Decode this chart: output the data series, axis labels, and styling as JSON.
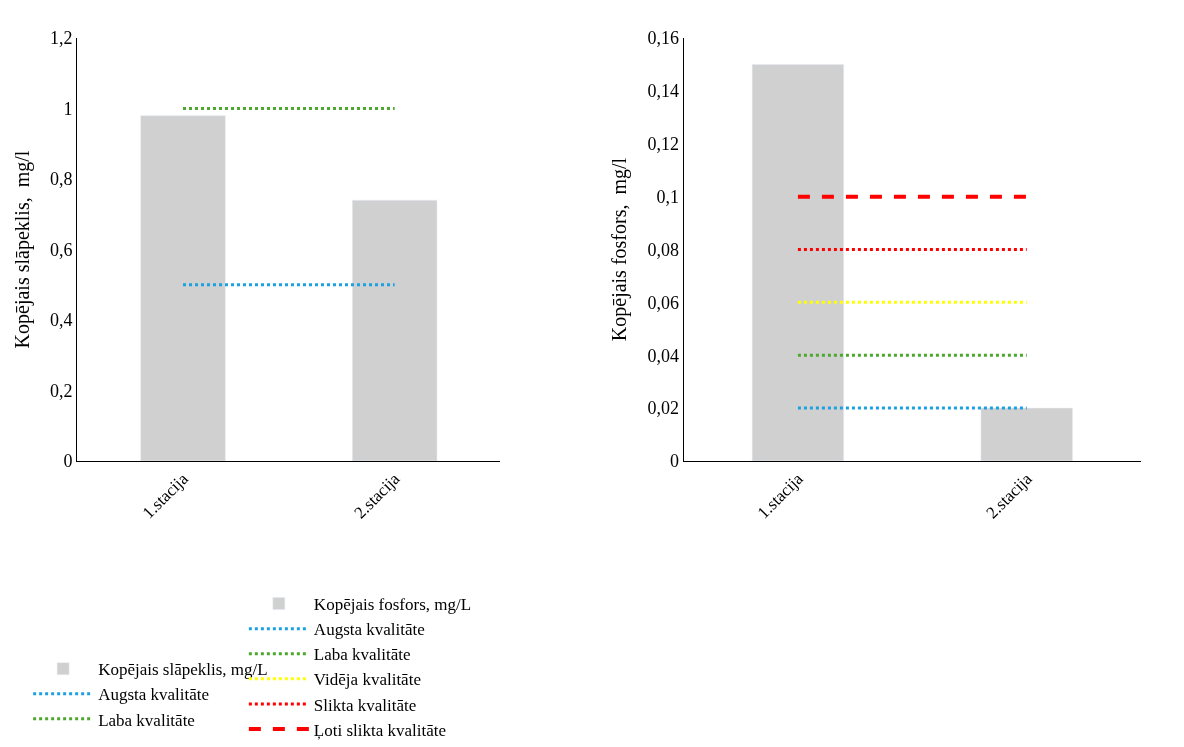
{
  "chart_data": [
    {
      "type": "bar",
      "ylabel": "Kopējais slāpeklis,  mg/l",
      "categories": [
        "1.stacija",
        "2.stacija"
      ],
      "series": [
        {
          "name": "Kopējais slāpeklis, mg/L",
          "color": "#d0d0d0",
          "values": [
            0.98,
            0.74
          ]
        },
        {
          "type": "line",
          "name": "Augsta kvalitāte",
          "color": "#1ba1e2",
          "line_style": "dotted",
          "values": [
            0.5,
            0.5
          ]
        },
        {
          "type": "line",
          "name": "Laba kvalitāte",
          "color": "#4ea72e",
          "line_style": "dotted",
          "values": [
            1,
            1
          ]
        }
      ],
      "ylim": [
        0,
        1.2
      ],
      "yticks": [
        0,
        {
          "value": 0.2,
          "label": "0,2"
        },
        {
          "value": 0.4,
          "label": "0,4"
        },
        {
          "value": 0.6,
          "label": "0,6"
        },
        {
          "value": 0.8,
          "label": "0,8"
        },
        1,
        {
          "value": 1.2,
          "label": "1,2"
        }
      ],
      "legend": "bottom"
    },
    {
      "type": "bar",
      "ylabel": "Kopējais fosfors,  mg/l",
      "categories": [
        "1.stacija",
        "2.stacija"
      ],
      "series": [
        {
          "name": "Kopējais fosfors, mg/L",
          "color": "#d0d0d0",
          "values": [
            0.15,
            0.02
          ]
        },
        {
          "type": "line",
          "name": "Augsta kvalitāte",
          "color": "#1ba1e2",
          "line_style": "dotted",
          "values": [
            0.02,
            0.02
          ]
        },
        {
          "type": "line",
          "name": "Laba kvalitāte",
          "color": "#4ea72e",
          "line_style": "dotted",
          "values": [
            0.04,
            0.04
          ]
        },
        {
          "type": "line",
          "name": "Vidēja kvalitāte",
          "color": "#ffff00",
          "line_style": "dotted",
          "values": [
            0.06,
            0.06
          ]
        },
        {
          "type": "line",
          "name": "Slikta kvalitāte",
          "color": "#ff0000",
          "line_style": "dotted",
          "values": [
            0.08,
            0.08
          ]
        },
        {
          "type": "line",
          "name": "Ļoti slikta kvalitāte",
          "color": "#ff0000",
          "line_style": "dashed",
          "values": [
            0.1,
            0.1
          ]
        }
      ],
      "ylim": [
        0,
        0.16
      ],
      "yticks": [
        0,
        {
          "value": 0.02,
          "label": "0,02"
        },
        {
          "value": 0.04,
          "label": "0,04"
        },
        {
          "value": 0.06,
          "label": "0,06"
        },
        {
          "value": 0.08,
          "label": "0,08"
        },
        {
          "value": 0.1,
          "label": "0,1"
        },
        {
          "value": 0.12,
          "label": "0,12"
        },
        {
          "value": 0.14,
          "label": "0,14"
        },
        {
          "value": 0.16,
          "label": "0,16"
        }
      ],
      "legend": "bottom"
    }
  ]
}
